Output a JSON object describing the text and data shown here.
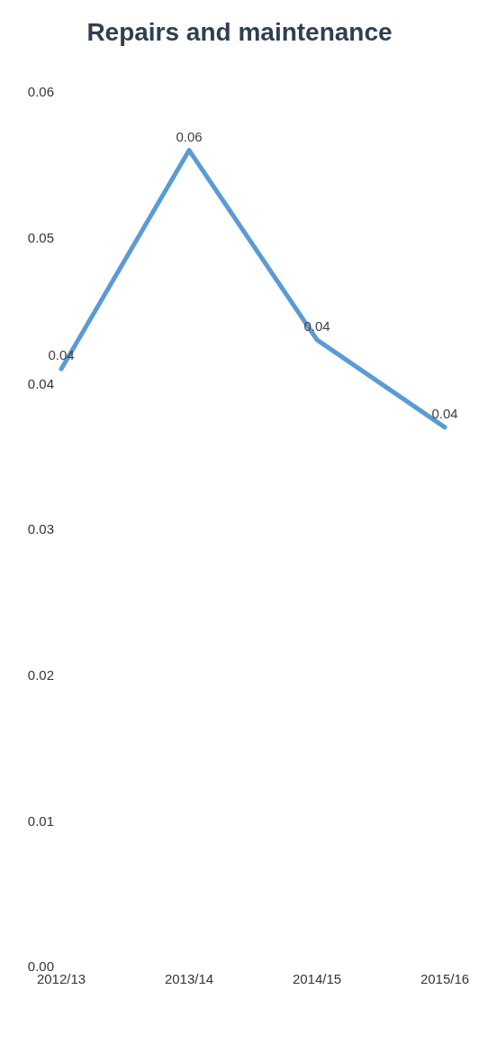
{
  "chart_data": {
    "type": "line",
    "title": "Repairs and maintenance",
    "categories": [
      "2012/13",
      "2013/14",
      "2014/15",
      "2015/16"
    ],
    "series": [
      {
        "color": "#5b9bd5",
        "values": [
          0.041,
          0.056,
          0.043,
          0.037
        ],
        "value_labels": [
          "0.04",
          "0.06",
          "0.04",
          "0.04"
        ]
      }
    ],
    "ylim": [
      0,
      0.06
    ],
    "yticks": [
      {
        "value": 0,
        "label": "0.00"
      },
      {
        "value": 0.01,
        "label": "0.01"
      },
      {
        "value": 0.02,
        "label": "0.02"
      },
      {
        "value": 0.03,
        "label": "0.03"
      },
      {
        "value": 0.04,
        "label": "0.04"
      },
      {
        "value": 0.05,
        "label": "0.05"
      },
      {
        "value": 0.06,
        "label": "0.06"
      }
    ],
    "marker": "none",
    "line_style": "solid"
  }
}
